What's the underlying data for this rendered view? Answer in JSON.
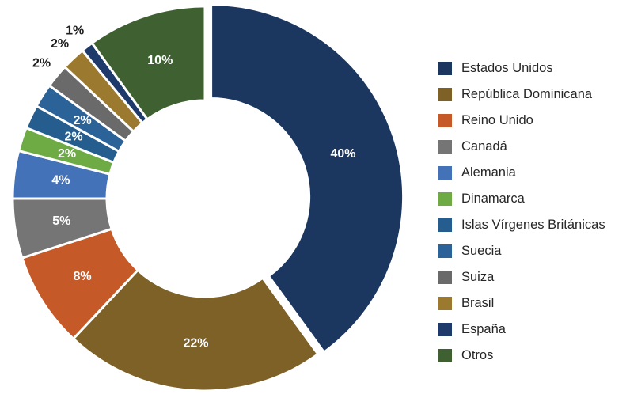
{
  "chart_data": {
    "type": "pie",
    "donut": true,
    "categories": [
      "Estados Unidos",
      "República Dominicana",
      "Reino Unido",
      "Canadá",
      "Alemania",
      "Dinamarca",
      "Islas Vírgenes Británicas",
      "Suecia",
      "Suiza",
      "Brasil",
      "España",
      "Otros"
    ],
    "values": [
      40,
      22,
      8,
      5,
      4,
      2,
      2,
      2,
      2,
      2,
      1,
      10
    ],
    "data_labels": [
      "40%",
      "22%",
      "8%",
      "5%",
      "4%",
      "2%",
      "2%",
      "2%",
      "2%",
      "2%",
      "1%",
      "10%"
    ],
    "colors": [
      "#1c375f",
      "#7d6126",
      "#c55a28",
      "#757575",
      "#4472b9",
      "#6eab45",
      "#255e8e",
      "#2b6398",
      "#6a6a6a",
      "#9b7a2f",
      "#1d3a6b",
      "#3f6132"
    ],
    "legend_position": "right",
    "exploded_slices": [
      "Estados Unidos"
    ]
  }
}
